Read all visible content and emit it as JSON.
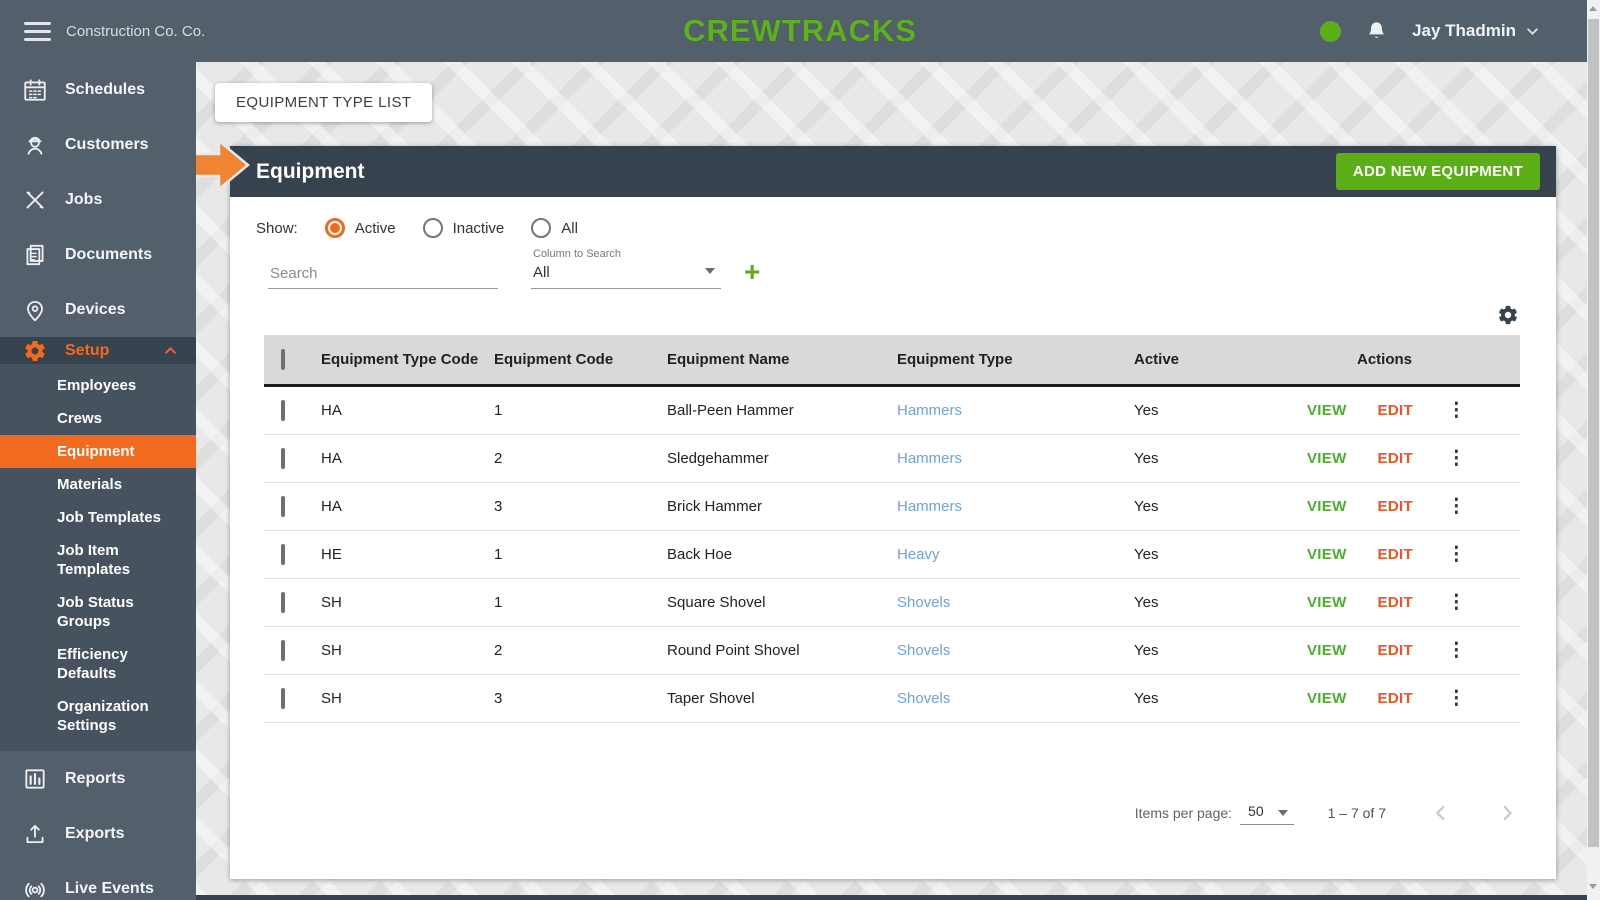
{
  "colors": {
    "slate": "#545f6c",
    "slate-dark": "#36424e",
    "slate-submenu": "#47525f",
    "accent": "#f16a1e",
    "arrow": "#ef8432",
    "green": "#5cae16",
    "green-text": "#4aae2c",
    "edit": "#f05323",
    "link": "#6ba5dc",
    "logo-green": "#5cb21c"
  },
  "header": {
    "company": "Construction Co. Co.",
    "logo": "CREWTRACKS",
    "user": "Jay Thadmin"
  },
  "sidebar": {
    "top_items": [
      {
        "label": "Schedules",
        "icon": "calendar"
      },
      {
        "label": "Customers",
        "icon": "worker"
      },
      {
        "label": "Jobs",
        "icon": "tools"
      },
      {
        "label": "Documents",
        "icon": "documents"
      },
      {
        "label": "Devices",
        "icon": "map-pin"
      }
    ],
    "setup": {
      "label": "Setup",
      "icon": "gear",
      "expanded": true,
      "children": [
        {
          "label": "Employees",
          "selected": false
        },
        {
          "label": "Crews",
          "selected": false
        },
        {
          "label": "Equipment",
          "selected": true
        },
        {
          "label": "Materials",
          "selected": false
        },
        {
          "label": "Job Templates",
          "selected": false
        },
        {
          "label": "Job Item Templates",
          "selected": false
        },
        {
          "label": "Job Status Groups",
          "selected": false
        },
        {
          "label": "Efficiency Defaults",
          "selected": false
        },
        {
          "label": "Organization Settings",
          "selected": false
        }
      ]
    },
    "bottom_items": [
      {
        "label": "Reports",
        "icon": "bar-chart"
      },
      {
        "label": "Exports",
        "icon": "upload"
      },
      {
        "label": "Live Events",
        "icon": "broadcast"
      }
    ]
  },
  "content": {
    "page_button": "EQUIPMENT TYPE LIST",
    "panel": {
      "title": "Equipment",
      "add_button": "ADD NEW EQUIPMENT",
      "show_label": "Show:",
      "radios": [
        {
          "label": "Active",
          "selected": true
        },
        {
          "label": "Inactive",
          "selected": false
        },
        {
          "label": "All",
          "selected": false
        }
      ],
      "search_placeholder": "Search",
      "column_select_label": "Column to Search",
      "column_select_value": "All",
      "table": {
        "headers": [
          "Equipment Type Code",
          "Equipment Code",
          "Equipment Name",
          "Equipment Type",
          "Active",
          "Actions"
        ],
        "view_label": "VIEW",
        "edit_label": "EDIT",
        "rows": [
          {
            "type_code": "HA",
            "code": "1",
            "name": "Ball-Peen Hammer",
            "type": "Hammers",
            "active": "Yes"
          },
          {
            "type_code": "HA",
            "code": "2",
            "name": "Sledgehammer",
            "type": "Hammers",
            "active": "Yes"
          },
          {
            "type_code": "HA",
            "code": "3",
            "name": "Brick Hammer",
            "type": "Hammers",
            "active": "Yes"
          },
          {
            "type_code": "HE",
            "code": "1",
            "name": "Back Hoe",
            "type": "Heavy",
            "active": "Yes"
          },
          {
            "type_code": "SH",
            "code": "1",
            "name": "Square Shovel",
            "type": "Shovels",
            "active": "Yes"
          },
          {
            "type_code": "SH",
            "code": "2",
            "name": "Round Point Shovel",
            "type": "Shovels",
            "active": "Yes"
          },
          {
            "type_code": "SH",
            "code": "3",
            "name": "Taper Shovel",
            "type": "Shovels",
            "active": "Yes"
          }
        ]
      },
      "pagination": {
        "items_per_page_label": "Items per page:",
        "items_per_page": "50",
        "range": "1 – 7 of 7"
      }
    }
  }
}
